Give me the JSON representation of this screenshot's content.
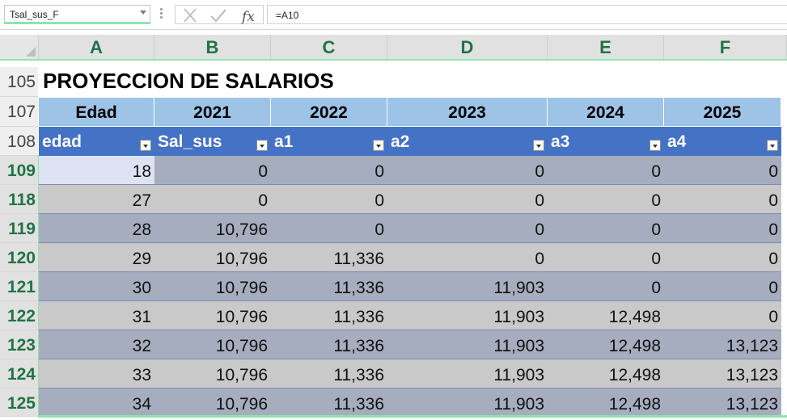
{
  "formula_bar": {
    "name_box": "Tsal_sus_F",
    "formula": "=A10",
    "cancel_icon": "x-icon",
    "enter_icon": "check-icon",
    "function_icon": "fx-icon"
  },
  "columns": [
    "A",
    "B",
    "C",
    "D",
    "E",
    "F"
  ],
  "row_numbers": [
    "105",
    "107",
    "108",
    "109",
    "118",
    "119",
    "120",
    "121",
    "122",
    "123",
    "124",
    "125"
  ],
  "sheet": {
    "title": "PROYECCION DE SALARIOS",
    "year_header": [
      "Edad",
      "2021",
      "2022",
      "2023",
      "2024",
      "2025"
    ],
    "table_header": [
      "edad",
      "Sal_sus",
      "a1",
      "a2",
      "a3",
      "a4"
    ],
    "rows": [
      [
        "18",
        "0",
        "0",
        "0",
        "0",
        "0"
      ],
      [
        "27",
        "0",
        "0",
        "0",
        "0",
        "0"
      ],
      [
        "28",
        "10,796",
        "0",
        "0",
        "0",
        "0"
      ],
      [
        "29",
        "10,796",
        "11,336",
        "0",
        "0",
        "0"
      ],
      [
        "30",
        "10,796",
        "11,336",
        "11,903",
        "0",
        "0"
      ],
      [
        "31",
        "10,796",
        "11,336",
        "11,903",
        "12,498",
        "0"
      ],
      [
        "32",
        "10,796",
        "11,336",
        "11,903",
        "12,498",
        "13,123"
      ],
      [
        "33",
        "10,796",
        "11,336",
        "11,903",
        "12,498",
        "13,123"
      ],
      [
        "34",
        "10,796",
        "11,336",
        "11,903",
        "12,498",
        "13,123"
      ]
    ]
  },
  "colors": {
    "header_accent": "#217346",
    "year_header_bg": "#9dc3e6",
    "table_header_bg": "#4472c4",
    "band_dark": "#a6adbf",
    "band_light": "#c9c9c9",
    "selection": "#8ee6a8"
  }
}
